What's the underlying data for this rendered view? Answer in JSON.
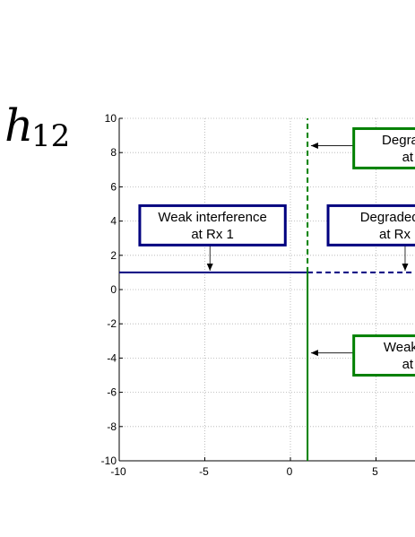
{
  "chart_data": {
    "type": "line",
    "ylabel": {
      "main": "h",
      "sub": "12"
    },
    "xlim": [
      -10,
      10
    ],
    "ylim": [
      -10,
      10
    ],
    "x_visible_max": 7.3,
    "x_ticks": [
      -10,
      -5,
      0,
      5
    ],
    "x_tick_labels": [
      "-10",
      "-5",
      "0",
      "5"
    ],
    "y_ticks": [
      10,
      8,
      6,
      4,
      2,
      0,
      -2,
      -4,
      -6,
      -8,
      -10
    ],
    "y_tick_labels": [
      "10",
      "8",
      "6",
      "4",
      "2",
      "0",
      "-2",
      "-4",
      "-6",
      "-8",
      "-10"
    ],
    "grid": true,
    "colors": {
      "blue": "#00007f",
      "green": "#008000",
      "axis": "#000000",
      "grid": "#b0b0b0"
    },
    "lines": [
      {
        "orientation": "horizontal",
        "at": 1,
        "from": -10,
        "to": 1,
        "style": "solid",
        "color": "blue"
      },
      {
        "orientation": "horizontal",
        "at": 1,
        "from": 1,
        "to": 10,
        "style": "dashed",
        "color": "blue"
      },
      {
        "orientation": "vertical",
        "at": 1,
        "from": -10,
        "to": 1,
        "style": "solid",
        "color": "green"
      },
      {
        "orientation": "vertical",
        "at": 1,
        "from": 1,
        "to": 10,
        "style": "dashed",
        "color": "green"
      }
    ],
    "annotations": [
      {
        "lines": [
          "Weak interference",
          "at Rx 1"
        ],
        "color": "blue",
        "box_x": [
          -8.8,
          -0.3
        ],
        "box_y": [
          2.6,
          4.9
        ],
        "arrow": {
          "from": [
            -4.7,
            2.6
          ],
          "to": [
            -4.7,
            1.1
          ]
        }
      },
      {
        "lines": [
          "Degraded c",
          "at Rx"
        ],
        "color": "blue",
        "box_x": [
          2.2,
          10
        ],
        "box_y": [
          2.6,
          4.9
        ],
        "arrow": {
          "from": [
            6.7,
            2.6
          ],
          "to": [
            6.7,
            1.1
          ]
        }
      },
      {
        "lines": [
          "Degrade",
          "at"
        ],
        "color": "green",
        "box_x": [
          3.7,
          10
        ],
        "box_y": [
          7.1,
          9.4
        ],
        "arrow": {
          "from": [
            3.7,
            8.4
          ],
          "to": [
            1.2,
            8.4
          ]
        }
      },
      {
        "lines": [
          "Weak in",
          "at"
        ],
        "color": "green",
        "box_x": [
          3.7,
          10
        ],
        "box_y": [
          -5.0,
          -2.7
        ],
        "arrow": {
          "from": [
            3.7,
            -3.7
          ],
          "to": [
            1.2,
            -3.7
          ]
        }
      }
    ]
  }
}
